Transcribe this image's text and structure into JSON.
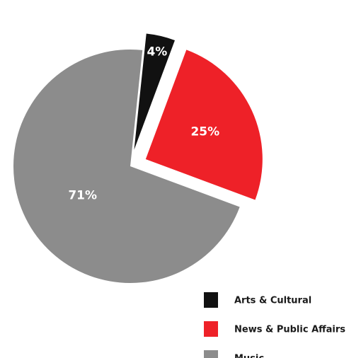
{
  "chart_data": {
    "type": "pie",
    "title": "",
    "slices": [
      {
        "name": "Arts & Cultural",
        "value": 4,
        "label": "4%",
        "color": "#111111",
        "exploded": true
      },
      {
        "name": "News & Public Affairs",
        "value": 25,
        "label": "25%",
        "color": "#ee2128",
        "exploded": true
      },
      {
        "name": "Music",
        "value": 71,
        "label": "71%",
        "color": "#8c8c8c",
        "exploded": false
      }
    ],
    "legend": {
      "placement": "bottom-right",
      "entries": [
        "Arts & Cultural",
        "News & Public Affairs",
        "Music"
      ]
    }
  }
}
